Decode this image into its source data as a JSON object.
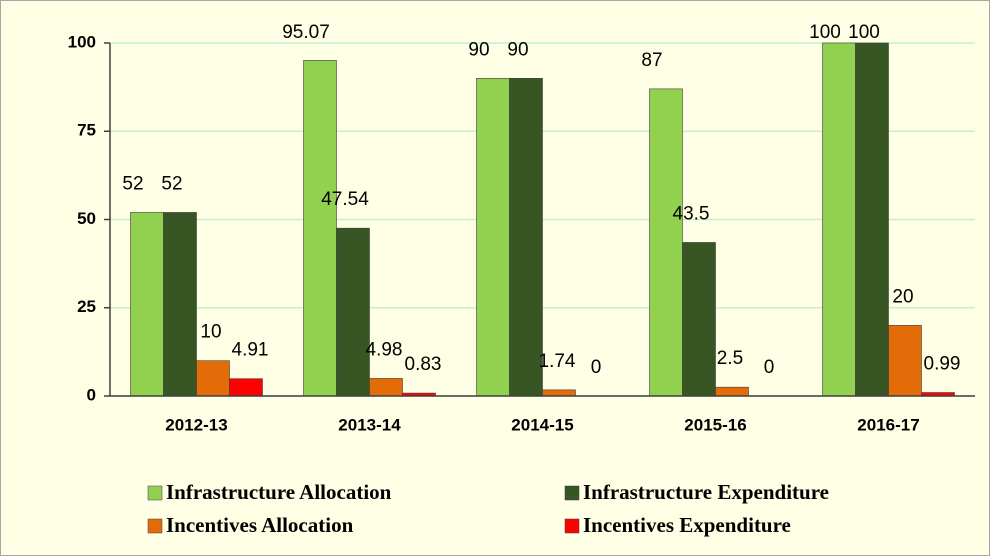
{
  "chart_data": {
    "type": "bar",
    "categories": [
      "2012-13",
      "2013-14",
      "2014-15",
      "2015-16",
      "2016-17"
    ],
    "series": [
      {
        "name": "Infrastructure Allocation",
        "color": "#92d050",
        "values": [
          52,
          95.07,
          90,
          87,
          100
        ]
      },
      {
        "name": "Infrastructure Expenditure",
        "color": "#375623",
        "values": [
          52,
          47.54,
          90,
          43.5,
          100
        ]
      },
      {
        "name": "Incentives Allocation",
        "color": "#e36c09",
        "values": [
          10,
          4.98,
          1.74,
          2.5,
          20
        ]
      },
      {
        "name": "Incentives Expenditure",
        "color": "#ff0000",
        "values": [
          4.91,
          0.83,
          0,
          0,
          0.99
        ]
      }
    ],
    "ylim": [
      0,
      100
    ],
    "yticks": [
      0,
      25,
      50,
      75,
      100
    ],
    "grid": true,
    "legend": "bottom"
  }
}
